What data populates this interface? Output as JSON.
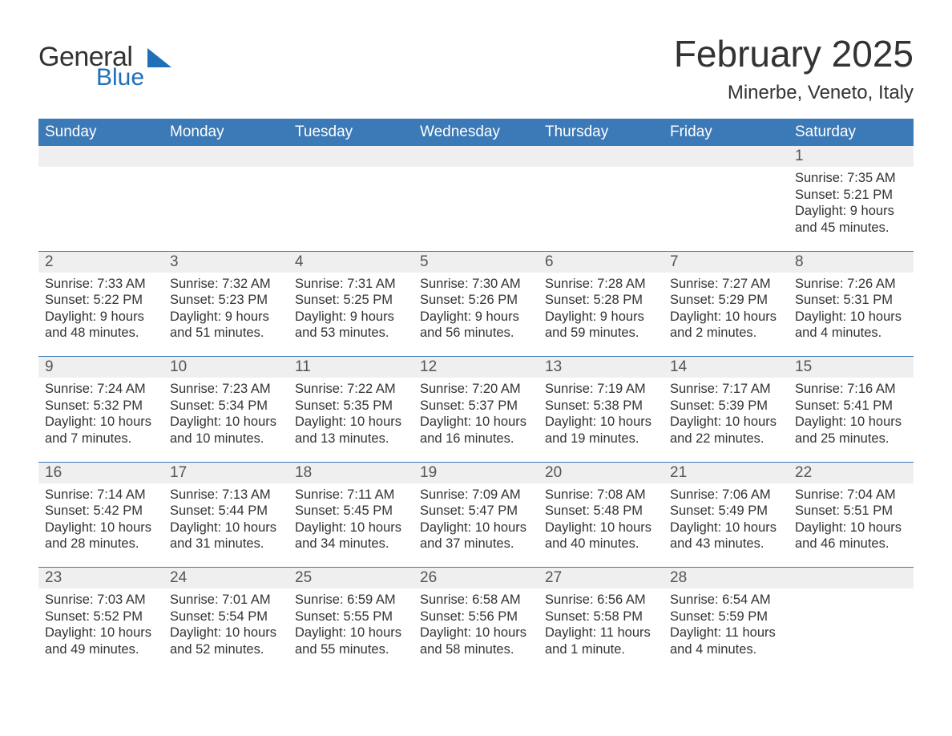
{
  "logo": {
    "text_general": "General",
    "text_blue": "Blue",
    "icon_color": "#1f6fb8"
  },
  "title": {
    "month": "February 2025",
    "location": "Minerbe, Veneto, Italy"
  },
  "colors": {
    "header_bg": "#3b79b7",
    "header_text": "#ffffff",
    "row_border": "#3b79b7",
    "daynum_bg": "#efefef",
    "body_text": "#333333",
    "page_bg": "#ffffff"
  },
  "weekdays": [
    "Sunday",
    "Monday",
    "Tuesday",
    "Wednesday",
    "Thursday",
    "Friday",
    "Saturday"
  ],
  "weeks": [
    [
      null,
      null,
      null,
      null,
      null,
      null,
      {
        "n": "1",
        "sr": "Sunrise: 7:35 AM",
        "ss": "Sunset: 5:21 PM",
        "dl": "Daylight: 9 hours and 45 minutes."
      }
    ],
    [
      {
        "n": "2",
        "sr": "Sunrise: 7:33 AM",
        "ss": "Sunset: 5:22 PM",
        "dl": "Daylight: 9 hours and 48 minutes."
      },
      {
        "n": "3",
        "sr": "Sunrise: 7:32 AM",
        "ss": "Sunset: 5:23 PM",
        "dl": "Daylight: 9 hours and 51 minutes."
      },
      {
        "n": "4",
        "sr": "Sunrise: 7:31 AM",
        "ss": "Sunset: 5:25 PM",
        "dl": "Daylight: 9 hours and 53 minutes."
      },
      {
        "n": "5",
        "sr": "Sunrise: 7:30 AM",
        "ss": "Sunset: 5:26 PM",
        "dl": "Daylight: 9 hours and 56 minutes."
      },
      {
        "n": "6",
        "sr": "Sunrise: 7:28 AM",
        "ss": "Sunset: 5:28 PM",
        "dl": "Daylight: 9 hours and 59 minutes."
      },
      {
        "n": "7",
        "sr": "Sunrise: 7:27 AM",
        "ss": "Sunset: 5:29 PM",
        "dl": "Daylight: 10 hours and 2 minutes."
      },
      {
        "n": "8",
        "sr": "Sunrise: 7:26 AM",
        "ss": "Sunset: 5:31 PM",
        "dl": "Daylight: 10 hours and 4 minutes."
      }
    ],
    [
      {
        "n": "9",
        "sr": "Sunrise: 7:24 AM",
        "ss": "Sunset: 5:32 PM",
        "dl": "Daylight: 10 hours and 7 minutes."
      },
      {
        "n": "10",
        "sr": "Sunrise: 7:23 AM",
        "ss": "Sunset: 5:34 PM",
        "dl": "Daylight: 10 hours and 10 minutes."
      },
      {
        "n": "11",
        "sr": "Sunrise: 7:22 AM",
        "ss": "Sunset: 5:35 PM",
        "dl": "Daylight: 10 hours and 13 minutes."
      },
      {
        "n": "12",
        "sr": "Sunrise: 7:20 AM",
        "ss": "Sunset: 5:37 PM",
        "dl": "Daylight: 10 hours and 16 minutes."
      },
      {
        "n": "13",
        "sr": "Sunrise: 7:19 AM",
        "ss": "Sunset: 5:38 PM",
        "dl": "Daylight: 10 hours and 19 minutes."
      },
      {
        "n": "14",
        "sr": "Sunrise: 7:17 AM",
        "ss": "Sunset: 5:39 PM",
        "dl": "Daylight: 10 hours and 22 minutes."
      },
      {
        "n": "15",
        "sr": "Sunrise: 7:16 AM",
        "ss": "Sunset: 5:41 PM",
        "dl": "Daylight: 10 hours and 25 minutes."
      }
    ],
    [
      {
        "n": "16",
        "sr": "Sunrise: 7:14 AM",
        "ss": "Sunset: 5:42 PM",
        "dl": "Daylight: 10 hours and 28 minutes."
      },
      {
        "n": "17",
        "sr": "Sunrise: 7:13 AM",
        "ss": "Sunset: 5:44 PM",
        "dl": "Daylight: 10 hours and 31 minutes."
      },
      {
        "n": "18",
        "sr": "Sunrise: 7:11 AM",
        "ss": "Sunset: 5:45 PM",
        "dl": "Daylight: 10 hours and 34 minutes."
      },
      {
        "n": "19",
        "sr": "Sunrise: 7:09 AM",
        "ss": "Sunset: 5:47 PM",
        "dl": "Daylight: 10 hours and 37 minutes."
      },
      {
        "n": "20",
        "sr": "Sunrise: 7:08 AM",
        "ss": "Sunset: 5:48 PM",
        "dl": "Daylight: 10 hours and 40 minutes."
      },
      {
        "n": "21",
        "sr": "Sunrise: 7:06 AM",
        "ss": "Sunset: 5:49 PM",
        "dl": "Daylight: 10 hours and 43 minutes."
      },
      {
        "n": "22",
        "sr": "Sunrise: 7:04 AM",
        "ss": "Sunset: 5:51 PM",
        "dl": "Daylight: 10 hours and 46 minutes."
      }
    ],
    [
      {
        "n": "23",
        "sr": "Sunrise: 7:03 AM",
        "ss": "Sunset: 5:52 PM",
        "dl": "Daylight: 10 hours and 49 minutes."
      },
      {
        "n": "24",
        "sr": "Sunrise: 7:01 AM",
        "ss": "Sunset: 5:54 PM",
        "dl": "Daylight: 10 hours and 52 minutes."
      },
      {
        "n": "25",
        "sr": "Sunrise: 6:59 AM",
        "ss": "Sunset: 5:55 PM",
        "dl": "Daylight: 10 hours and 55 minutes."
      },
      {
        "n": "26",
        "sr": "Sunrise: 6:58 AM",
        "ss": "Sunset: 5:56 PM",
        "dl": "Daylight: 10 hours and 58 minutes."
      },
      {
        "n": "27",
        "sr": "Sunrise: 6:56 AM",
        "ss": "Sunset: 5:58 PM",
        "dl": "Daylight: 11 hours and 1 minute."
      },
      {
        "n": "28",
        "sr": "Sunrise: 6:54 AM",
        "ss": "Sunset: 5:59 PM",
        "dl": "Daylight: 11 hours and 4 minutes."
      },
      null
    ]
  ]
}
